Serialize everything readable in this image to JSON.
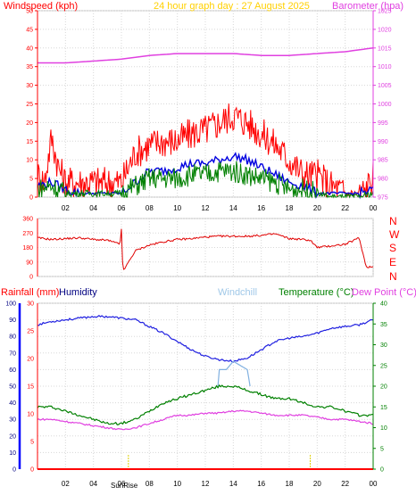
{
  "chart_data": [
    {
      "type": "line",
      "panel": "wind-barometer",
      "title": "24 hour graph day : 27 August 2025",
      "y_left_label": "Windspeed (kph)",
      "y_right_label": "Barometer (hpa)",
      "y_left_ticks": [
        "0",
        "5",
        "10",
        "15",
        "20",
        "25",
        "30",
        "35",
        "40",
        "45",
        "50"
      ],
      "y_right_ticks": [
        "975",
        "980",
        "985",
        "990",
        "995",
        "1000",
        "1005",
        "1010",
        "1015",
        "1020",
        "1025"
      ],
      "ylim_left": [
        0,
        50
      ],
      "ylim_right": [
        975,
        1025
      ],
      "x_ticks": [
        "02",
        "04",
        "06",
        "08",
        "10",
        "12",
        "14",
        "16",
        "18",
        "20",
        "22",
        "00"
      ],
      "x_hours": [
        0,
        2,
        4,
        6,
        8,
        10,
        12,
        14,
        16,
        18,
        20,
        22,
        24
      ],
      "series": [
        {
          "name": "Barometer",
          "color": "#e040e0",
          "axis": "right",
          "x": [
            0,
            2,
            4,
            6,
            8,
            10,
            12,
            14,
            16,
            18,
            20,
            22,
            24
          ],
          "y": [
            1011.0,
            1011.0,
            1011.5,
            1012.0,
            1013.0,
            1013.5,
            1013.5,
            1013.5,
            1013.0,
            1013.0,
            1013.5,
            1014.0,
            1015.0
          ]
        },
        {
          "name": "Gust",
          "color": "#ff0000",
          "axis": "left",
          "x": [
            0,
            0.5,
            1,
            1.5,
            2,
            3,
            4,
            5,
            6,
            6.5,
            7,
            8,
            9,
            10,
            11,
            12,
            13,
            14,
            15,
            16,
            17,
            18,
            19,
            20,
            21,
            22,
            23,
            23.5,
            24
          ],
          "y": [
            6,
            4,
            16,
            8,
            4,
            4,
            4,
            4,
            4,
            8,
            12,
            14,
            15,
            15,
            17,
            18,
            20,
            22,
            20,
            17,
            14,
            10,
            6,
            6,
            3,
            1,
            1,
            2,
            6
          ]
        },
        {
          "name": "Average",
          "color": "#0000e0",
          "axis": "left",
          "x": [
            0,
            1,
            2,
            3,
            4,
            5,
            6,
            7,
            8,
            9,
            10,
            11,
            12,
            13,
            14,
            15,
            16,
            17,
            18,
            19,
            20,
            21,
            22,
            23,
            24
          ],
          "y": [
            3,
            4,
            2,
            1,
            1,
            1,
            1,
            4,
            7,
            7,
            8,
            9,
            9,
            10,
            11,
            10,
            8,
            6,
            4,
            3,
            1,
            1,
            1,
            1,
            2
          ]
        },
        {
          "name": "Wind",
          "color": "#008000",
          "axis": "left",
          "x": [
            0,
            1,
            2,
            3,
            4,
            5,
            6,
            7,
            8,
            9,
            10,
            11,
            12,
            13,
            14,
            15,
            16,
            17,
            18,
            19,
            20,
            21,
            22,
            23,
            24
          ],
          "y": [
            2,
            3,
            1,
            1,
            1,
            1,
            1,
            3,
            5,
            5,
            5,
            6,
            6,
            7,
            7,
            6,
            5,
            4,
            2,
            2,
            1,
            0,
            0,
            0,
            1
          ]
        }
      ]
    },
    {
      "type": "line",
      "panel": "wind-direction",
      "y_right_labels": [
        "N",
        "W",
        "S",
        "E",
        "N"
      ],
      "y_ticks": [
        "0",
        "90",
        "180",
        "270",
        "360"
      ],
      "ylim": [
        0,
        360
      ],
      "series": [
        {
          "name": "Direction",
          "color": "#e00000",
          "x": [
            0,
            1,
            2,
            3,
            4,
            5,
            5.9,
            6,
            6.1,
            7,
            8,
            9,
            10,
            11,
            12,
            13,
            14,
            15,
            16,
            17,
            18,
            19,
            19.5,
            20,
            21,
            22,
            23,
            23.5,
            24
          ],
          "y": [
            240,
            230,
            235,
            240,
            230,
            225,
            200,
            300,
            30,
            160,
            195,
            215,
            230,
            235,
            245,
            250,
            250,
            250,
            255,
            265,
            235,
            230,
            225,
            180,
            190,
            200,
            240,
            60,
            60
          ]
        }
      ]
    },
    {
      "type": "line",
      "panel": "temp-humidity-rain",
      "y_left1_label": "Rainfall (mm)",
      "y_left2_label": "Humidity",
      "y_windchill_label": "Windchill",
      "y_temp_label": "Temperature (°C)",
      "y_dew_label": "Dew Point (°C)",
      "rain_ticks": [
        "0",
        "10",
        "20",
        "30",
        "40",
        "50",
        "60",
        "70",
        "80",
        "90",
        "100"
      ],
      "humidity_ticks": [
        "0",
        "5",
        "10",
        "15",
        "20",
        "25",
        "30"
      ],
      "temp_ticks": [
        "0",
        "5",
        "10",
        "15",
        "20",
        "25",
        "30",
        "35",
        "40"
      ],
      "ylim_humidity": [
        0,
        100
      ],
      "ylim_temp": [
        0,
        40
      ],
      "sunrise_label": "SunRise",
      "sunrise_hour": 6.5,
      "sunset_hour": 19.5,
      "series": [
        {
          "name": "Humidity",
          "color": "#2020e0",
          "axis": "humidity",
          "x": [
            0,
            1,
            2,
            3,
            4,
            5,
            6,
            7,
            8,
            9,
            10,
            11,
            12,
            13,
            14,
            15,
            16,
            17,
            18,
            19,
            20,
            21,
            22,
            23,
            24
          ],
          "y": [
            87,
            89,
            90,
            91,
            92,
            92,
            91,
            90,
            86,
            82,
            77,
            72,
            68,
            66,
            65,
            67,
            72,
            77,
            79,
            80,
            82,
            85,
            86,
            87,
            90
          ]
        },
        {
          "name": "Windchill",
          "color": "#80b0e0",
          "axis": "temp",
          "x": [
            12.9,
            13,
            13.5,
            14,
            14.5,
            15,
            15.2
          ],
          "y": [
            20,
            24,
            24,
            26,
            25,
            24,
            20
          ]
        },
        {
          "name": "Temperature",
          "color": "#008000",
          "axis": "temp",
          "x": [
            0,
            1,
            2,
            3,
            4,
            5,
            6,
            7,
            8,
            9,
            10,
            11,
            12,
            13,
            14,
            15,
            16,
            17,
            18,
            19,
            20,
            21,
            22,
            23,
            24
          ],
          "y": [
            15,
            15,
            14,
            13,
            12,
            11,
            11,
            12,
            14,
            16,
            17,
            18,
            19,
            20,
            20,
            19,
            18,
            17,
            17,
            16,
            15,
            15,
            14,
            13,
            13
          ]
        },
        {
          "name": "Dew Point",
          "color": "#e040e0",
          "axis": "temp",
          "x": [
            0,
            1,
            2,
            3,
            4,
            5,
            6,
            7,
            8,
            9,
            10,
            11,
            12,
            13,
            14,
            15,
            16,
            17,
            18,
            19,
            20,
            21,
            22,
            23,
            24
          ],
          "y": [
            12,
            12,
            11.5,
            11,
            10.5,
            10,
            9.5,
            10,
            11,
            12,
            13,
            13,
            13.5,
            13.5,
            14,
            14,
            13.5,
            13,
            13,
            13,
            12.5,
            12,
            12,
            11.5,
            11
          ]
        },
        {
          "name": "Rainfall",
          "color": "#ff0000",
          "axis": "rain",
          "x": [
            0,
            24
          ],
          "y": [
            0,
            0
          ]
        }
      ]
    }
  ]
}
